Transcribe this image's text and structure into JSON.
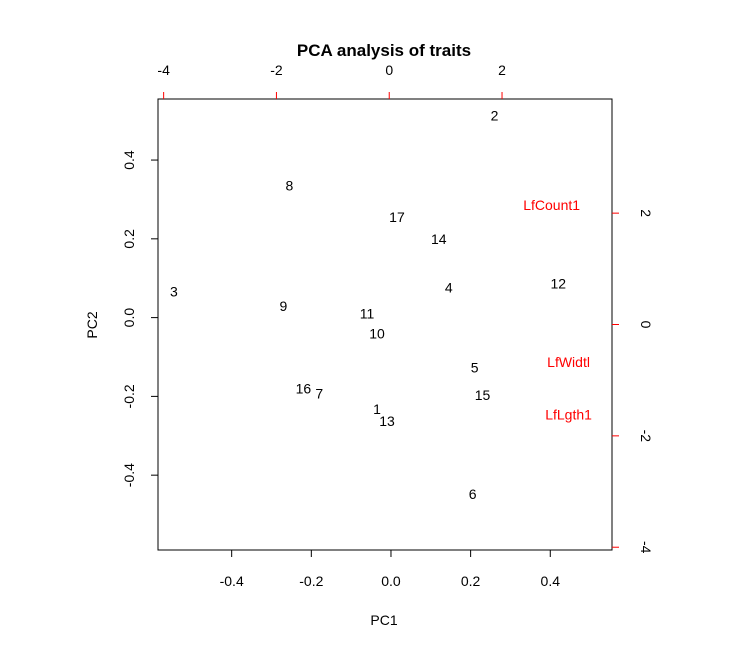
{
  "chart_data": {
    "type": "scatter",
    "title": "PCA analysis of traits",
    "xlabel": "PC1",
    "ylabel": "PC2",
    "xlim": [
      -0.585,
      0.555
    ],
    "ylim": [
      -0.59,
      0.555
    ],
    "x_ticks": [
      -0.4,
      -0.2,
      0.0,
      0.2,
      0.4
    ],
    "x_tick_labels": [
      "-0.4",
      "-0.2",
      "0.0",
      "0.2",
      "0.4"
    ],
    "y_ticks": [
      -0.4,
      -0.2,
      0.0,
      0.2,
      0.4
    ],
    "y_tick_labels": [
      "-0.4",
      "-0.2",
      "0.0",
      "0.2",
      "0.4"
    ],
    "top_axis": {
      "range": [
        -4.1,
        3.95
      ],
      "ticks": [
        -4,
        -2,
        0,
        2
      ],
      "tick_labels": [
        "-4",
        "-2",
        "0",
        "2"
      ],
      "color": "#ff0000"
    },
    "right_axis": {
      "range": [
        -4.05,
        4.05
      ],
      "ticks": [
        -4,
        -2,
        0,
        2
      ],
      "tick_labels": [
        "-4",
        "-2",
        "0",
        "2"
      ],
      "color": "#ff0000"
    },
    "observations": [
      {
        "label": "1",
        "x": -0.035,
        "y": -0.232
      },
      {
        "label": "2",
        "x": 0.26,
        "y": 0.513
      },
      {
        "label": "3",
        "x": -0.545,
        "y": 0.066
      },
      {
        "label": "4",
        "x": 0.145,
        "y": 0.076
      },
      {
        "label": "5",
        "x": 0.21,
        "y": -0.127
      },
      {
        "label": "6",
        "x": 0.205,
        "y": -0.448
      },
      {
        "label": "7",
        "x": -0.18,
        "y": -0.193
      },
      {
        "label": "8",
        "x": -0.255,
        "y": 0.335
      },
      {
        "label": "9",
        "x": -0.27,
        "y": 0.03
      },
      {
        "label": "10",
        "x": -0.035,
        "y": -0.04
      },
      {
        "label": "11",
        "x": -0.06,
        "y": 0.01
      },
      {
        "label": "12",
        "x": 0.42,
        "y": 0.086
      },
      {
        "label": "13",
        "x": -0.01,
        "y": -0.262
      },
      {
        "label": "14",
        "x": 0.12,
        "y": 0.2
      },
      {
        "label": "15",
        "x": 0.23,
        "y": -0.196
      },
      {
        "label": "16",
        "x": -0.22,
        "y": -0.18
      },
      {
        "label": "17",
        "x": 0.015,
        "y": 0.256
      }
    ],
    "variables": [
      {
        "label": "LfCount1",
        "x": 2.88,
        "y": 2.15
      },
      {
        "label": "LfWidtl",
        "x": 3.18,
        "y": -0.67
      },
      {
        "label": "LfLgth1",
        "x": 3.18,
        "y": -1.62
      }
    ],
    "variable_color": "#ff0000",
    "grid": false,
    "legend": "none"
  }
}
